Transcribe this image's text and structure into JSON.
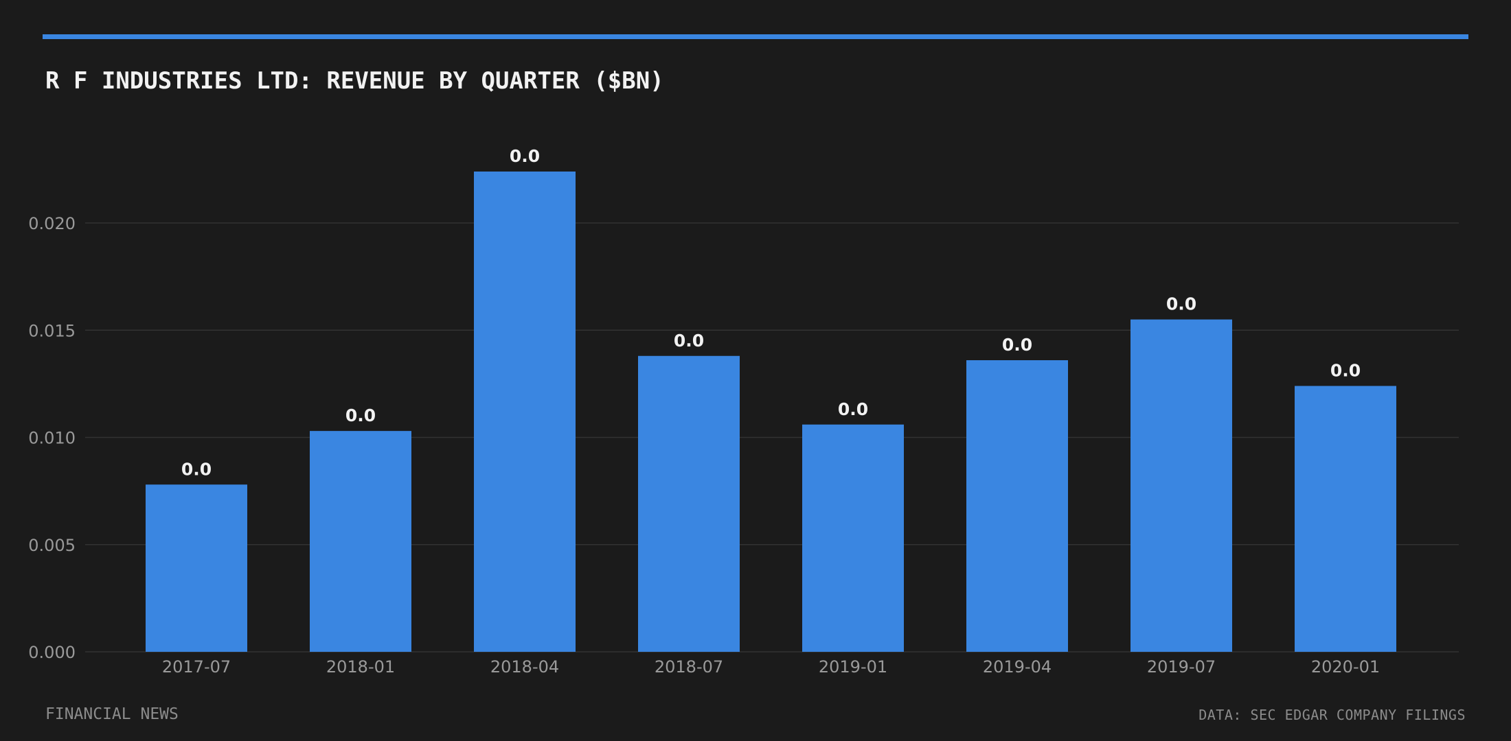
{
  "header": {
    "title": "R F INDUSTRIES LTD: REVENUE BY QUARTER ($BN)"
  },
  "footer": {
    "source_left": "FINANCIAL NEWS",
    "source_right": "DATA: SEC EDGAR COMPANY FILINGS"
  },
  "colors": {
    "accent": "#3a86e1",
    "bar": "#3a86e1",
    "background": "#1b1b1b",
    "grid": "#333333"
  },
  "chart_data": {
    "type": "bar",
    "title": "R F INDUSTRIES LTD: REVENUE BY QUARTER ($BN)",
    "xlabel": "",
    "ylabel": "",
    "categories": [
      "2017-07",
      "2018-01",
      "2018-04",
      "2018-07",
      "2019-01",
      "2019-04",
      "2019-07",
      "2020-01"
    ],
    "values": [
      0.0078,
      0.0103,
      0.0224,
      0.0138,
      0.0106,
      0.0136,
      0.0155,
      0.0124
    ],
    "data_labels": [
      "0.0",
      "0.0",
      "0.0",
      "0.0",
      "0.0",
      "0.0",
      "0.0",
      "0.0"
    ],
    "y_ticks": [
      0.0,
      0.005,
      0.01,
      0.015,
      0.02
    ],
    "y_tick_labels": [
      "0.000",
      "0.005",
      "0.010",
      "0.015",
      "0.020"
    ],
    "ylim": [
      0,
      0.0245
    ],
    "grid": true,
    "legend": "none"
  }
}
